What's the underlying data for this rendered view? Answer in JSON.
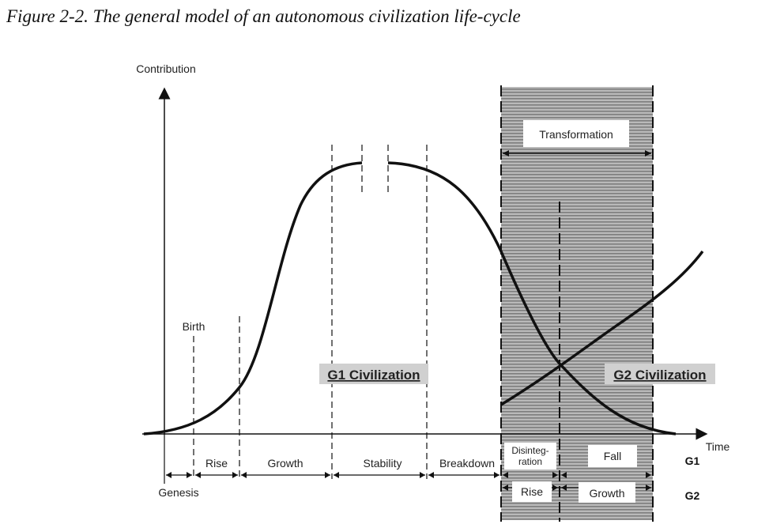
{
  "figure": {
    "title": "Figure 2-2. The general model of an autonomous civilization life-cycle"
  },
  "axes": {
    "y_label": "Contribution",
    "x_label": "Time"
  },
  "labels": {
    "birth": "Birth",
    "genesis": "Genesis",
    "transformation": "Transformation",
    "g1_civilization": "G1 Civilization",
    "g2_civilization": "G2 Civilization"
  },
  "g1_phases": [
    "Rise",
    "Growth",
    "Stability",
    "Breakdown"
  ],
  "overlap_phases": {
    "disintegration_line1": "Disinteg-",
    "disintegration_line2": "ration",
    "fall": "Fall",
    "g2_rise": "Rise",
    "g2_growth": "Growth"
  },
  "row_labels": {
    "g1": "G1",
    "g2": "G2"
  },
  "colors": {
    "shading": "#8a8a8a",
    "civ_box": "#d0d0d0",
    "line": "#111111"
  }
}
